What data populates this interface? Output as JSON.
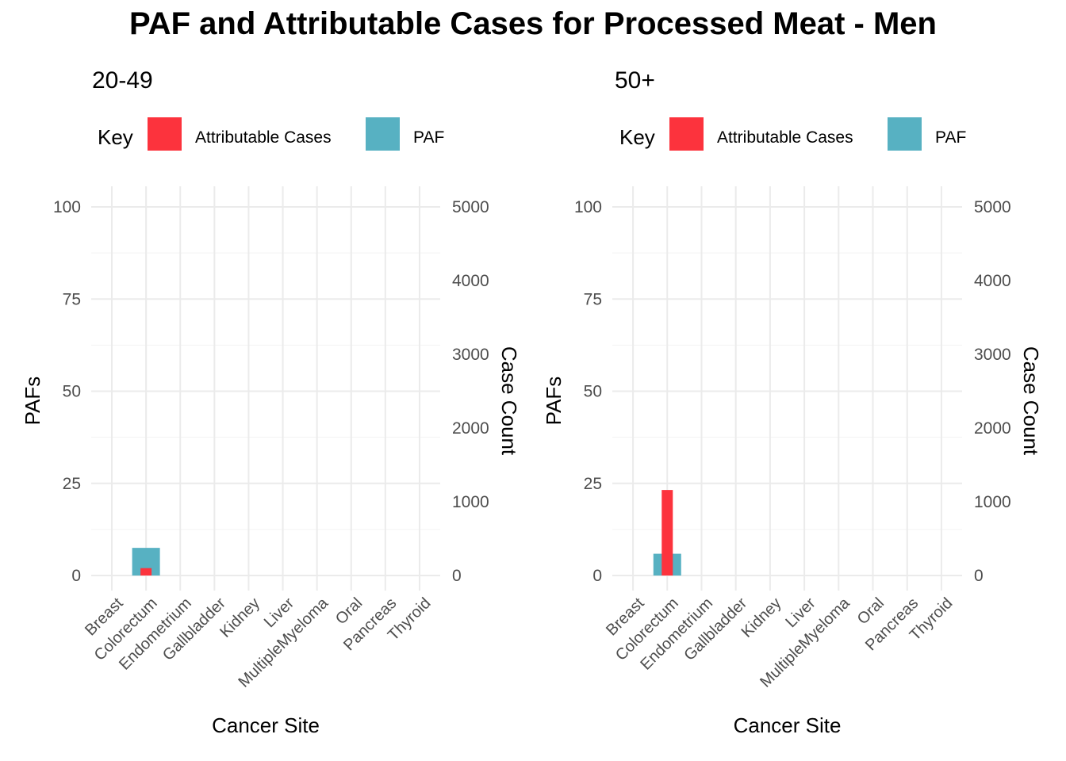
{
  "title": "PAF and Attributable Cases for Processed Meat - Men",
  "legend": {
    "title": "Key",
    "entries": [
      {
        "label": "Attributable Cases",
        "color": "#FC333D"
      },
      {
        "label": "PAF",
        "color": "#57B1C2"
      }
    ]
  },
  "chart_data": [
    {
      "type": "bar",
      "title": "20-49",
      "xlabel": "Cancer Site",
      "ylabel": "PAFs",
      "y2label": "Case Count",
      "ylim": [
        0,
        100
      ],
      "y2lim": [
        0,
        5000
      ],
      "yticks": [
        0,
        25,
        50,
        75,
        100
      ],
      "y2ticks": [
        0,
        1000,
        2000,
        3000,
        4000,
        5000
      ],
      "categories": [
        "Breast",
        "Colorectum",
        "Endometrium",
        "Gallbladder",
        "Kidney",
        "Liver",
        "MultipleMyeloma",
        "Oral",
        "Pancreas",
        "Thyroid"
      ],
      "series": [
        {
          "name": "PAF",
          "axis": "left",
          "values": [
            0,
            7.5,
            0,
            0,
            0,
            0,
            0,
            0,
            0,
            0
          ]
        },
        {
          "name": "Attributable Cases",
          "axis": "right",
          "values": [
            0,
            100,
            0,
            0,
            0,
            0,
            0,
            0,
            0,
            0
          ]
        }
      ],
      "legend_position": "top",
      "grid": true
    },
    {
      "type": "bar",
      "title": "50+",
      "xlabel": "Cancer Site",
      "ylabel": "PAFs",
      "y2label": "Case Count",
      "ylim": [
        0,
        100
      ],
      "y2lim": [
        0,
        5000
      ],
      "yticks": [
        0,
        25,
        50,
        75,
        100
      ],
      "y2ticks": [
        0,
        1000,
        2000,
        3000,
        4000,
        5000
      ],
      "categories": [
        "Breast",
        "Colorectum",
        "Endometrium",
        "Gallbladder",
        "Kidney",
        "Liver",
        "MultipleMyeloma",
        "Oral",
        "Pancreas",
        "Thyroid"
      ],
      "series": [
        {
          "name": "PAF",
          "axis": "left",
          "values": [
            0,
            5.9,
            0,
            0,
            0,
            0,
            0,
            0,
            0,
            0
          ]
        },
        {
          "name": "Attributable Cases",
          "axis": "right",
          "values": [
            0,
            1160,
            0,
            0,
            0,
            0,
            0,
            0,
            0,
            0
          ]
        }
      ],
      "legend_position": "top",
      "grid": true
    }
  ]
}
